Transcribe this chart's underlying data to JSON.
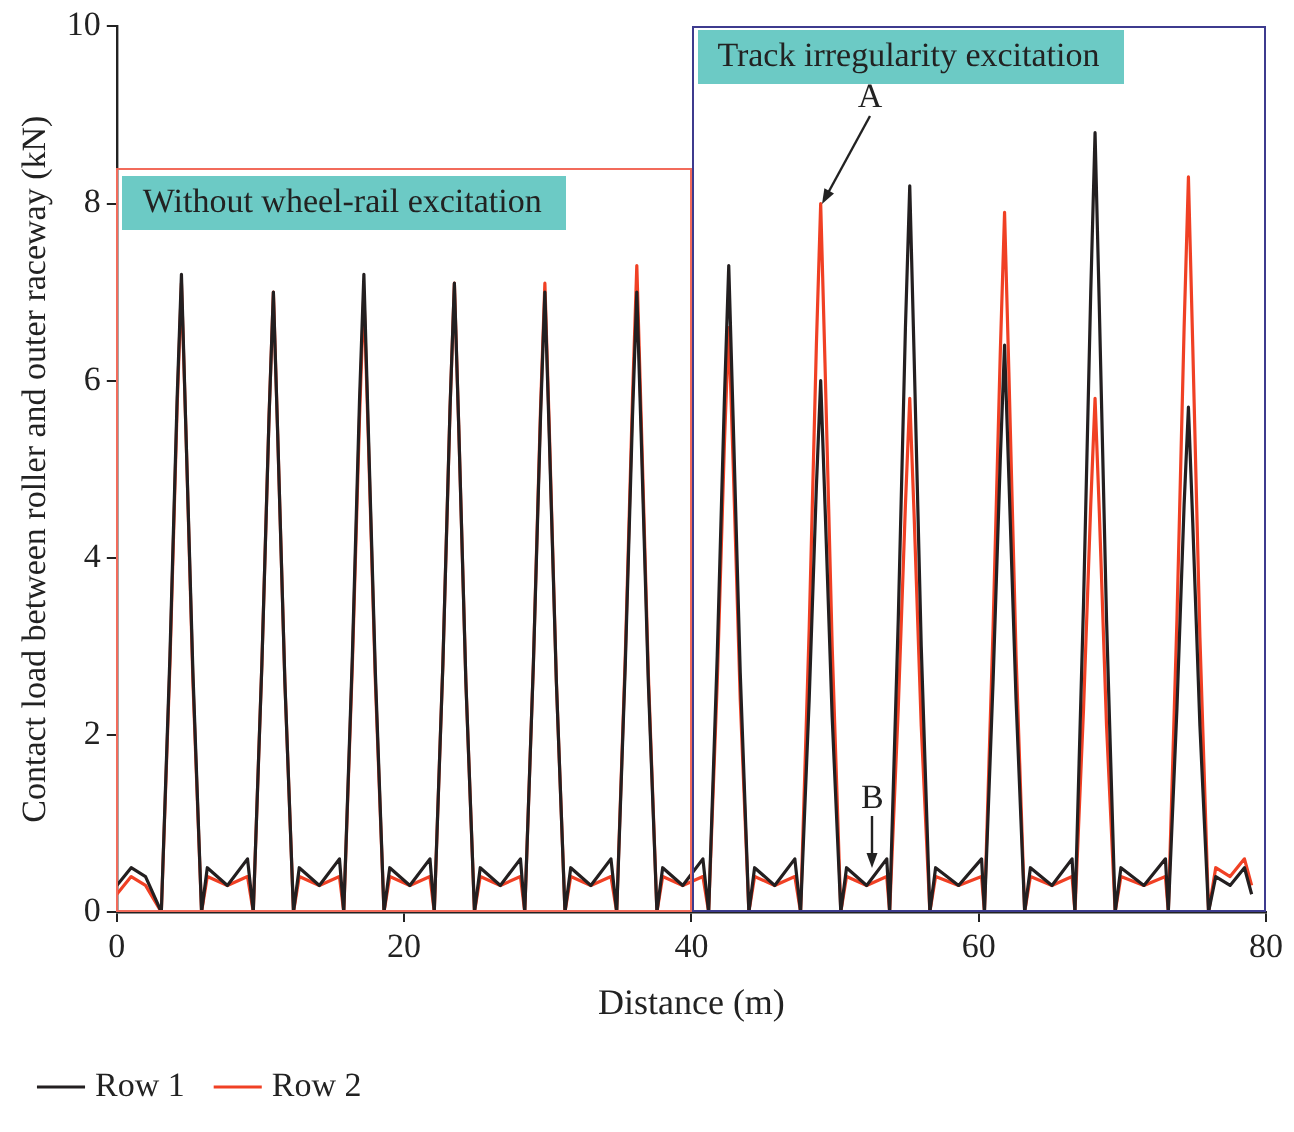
{
  "chart_data": {
    "type": "line",
    "xlabel": "Distance (m)",
    "ylabel": "Contact load between roller and outer raceway (kN)",
    "x": [
      0,
      1,
      2,
      3.1,
      3.7,
      4.2,
      4.5,
      4.8,
      5.3,
      5.9,
      6.3,
      7.7,
      9.1,
      9.5,
      10.1,
      10.6,
      10.9,
      11.2,
      11.7,
      12.3,
      12.7,
      14.1,
      15.5,
      15.8,
      16.4,
      16.9,
      17.2,
      17.5,
      18.0,
      18.6,
      19.0,
      20.4,
      21.8,
      22.1,
      22.7,
      23.2,
      23.5,
      23.8,
      24.3,
      24.9,
      25.3,
      26.7,
      28.1,
      28.4,
      29.0,
      29.5,
      29.8,
      30.1,
      30.6,
      31.2,
      31.6,
      33.0,
      34.4,
      34.8,
      35.4,
      35.9,
      36.2,
      36.5,
      37.0,
      37.6,
      38.0,
      39.4,
      40.8,
      41.2,
      41.8,
      42.3,
      42.6,
      42.9,
      43.4,
      44.0,
      44.4,
      45.8,
      47.2,
      47.6,
      48.2,
      48.7,
      49.0,
      49.3,
      49.8,
      50.4,
      50.8,
      52.2,
      53.6,
      53.8,
      54.4,
      54.9,
      55.2,
      55.5,
      56.0,
      56.6,
      57.0,
      58.6,
      60.2,
      60.4,
      61.0,
      61.5,
      61.8,
      62.1,
      62.6,
      63.2,
      63.6,
      65.1,
      66.5,
      66.7,
      67.3,
      67.8,
      68.1,
      68.4,
      68.9,
      69.5,
      69.9,
      71.5,
      73.0,
      73.2,
      73.8,
      74.3,
      74.6,
      74.9,
      75.4,
      76.0,
      76.5,
      77.5,
      78.5,
      79.0
    ],
    "series": [
      {
        "name": "Row 1",
        "color": "#231f20",
        "values": [
          0.3,
          0.5,
          0.4,
          0,
          2.9,
          5.8,
          7.2,
          5.5,
          2.7,
          0,
          0.5,
          0.3,
          0.6,
          0,
          2.8,
          5.6,
          7.0,
          5.4,
          2.6,
          0,
          0.5,
          0.3,
          0.6,
          0,
          2.9,
          5.8,
          7.2,
          5.5,
          2.7,
          0,
          0.5,
          0.3,
          0.6,
          0,
          2.8,
          5.7,
          7.1,
          5.5,
          2.6,
          0,
          0.5,
          0.3,
          0.6,
          0,
          2.8,
          5.6,
          7.0,
          5.4,
          2.6,
          0,
          0.5,
          0.3,
          0.6,
          0,
          2.8,
          5.6,
          7.0,
          5.4,
          2.6,
          0,
          0.5,
          0.3,
          0.6,
          0,
          2.9,
          5.8,
          7.3,
          5.6,
          2.7,
          0,
          0.5,
          0.3,
          0.6,
          0,
          2.4,
          4.8,
          6.0,
          4.6,
          2.2,
          0,
          0.5,
          0.3,
          0.6,
          0,
          3.3,
          6.6,
          8.2,
          6.3,
          3.0,
          0,
          0.5,
          0.3,
          0.6,
          0,
          2.6,
          5.1,
          6.4,
          4.9,
          2.4,
          0,
          0.5,
          0.3,
          0.6,
          0,
          3.5,
          7.0,
          8.8,
          6.8,
          3.3,
          0,
          0.5,
          0.3,
          0.6,
          0,
          2.3,
          4.6,
          5.7,
          4.4,
          2.1,
          0,
          0.4,
          0.3,
          0.5,
          0.2
        ]
      },
      {
        "name": "Row 2",
        "color": "#f04024",
        "values": [
          0.2,
          0.4,
          0.3,
          0,
          2.8,
          5.7,
          7.1,
          5.5,
          2.6,
          0,
          0.4,
          0.3,
          0.4,
          0,
          2.8,
          5.6,
          7.0,
          5.4,
          2.6,
          0,
          0.4,
          0.3,
          0.4,
          0,
          2.8,
          5.6,
          7.0,
          5.4,
          2.6,
          0,
          0.4,
          0.3,
          0.4,
          0,
          2.8,
          5.7,
          7.1,
          5.5,
          2.6,
          0,
          0.4,
          0.3,
          0.4,
          0,
          2.8,
          5.7,
          7.1,
          5.5,
          2.6,
          0,
          0.4,
          0.3,
          0.4,
          0,
          2.9,
          5.8,
          7.3,
          5.6,
          2.7,
          0,
          0.4,
          0.3,
          0.4,
          0,
          2.6,
          5.3,
          6.6,
          5.1,
          2.4,
          0,
          0.4,
          0.3,
          0.4,
          0,
          3.2,
          6.4,
          8.0,
          6.2,
          3.0,
          0,
          0.4,
          0.3,
          0.4,
          0,
          2.3,
          4.6,
          5.8,
          4.5,
          2.1,
          0,
          0.4,
          0.3,
          0.4,
          0,
          3.2,
          6.3,
          7.9,
          6.1,
          2.9,
          0,
          0.4,
          0.3,
          0.4,
          0,
          2.3,
          4.6,
          5.8,
          4.5,
          2.1,
          0,
          0.4,
          0.3,
          0.4,
          0,
          3.3,
          6.6,
          8.3,
          6.4,
          3.1,
          0,
          0.5,
          0.4,
          0.6,
          0.3
        ]
      }
    ],
    "xlim": [
      0,
      80
    ],
    "xticks": [
      0,
      20,
      40,
      60,
      80
    ],
    "ylim": [
      0,
      10
    ],
    "yticks": [
      0,
      2,
      4,
      6,
      8,
      10
    ],
    "annotations": [
      "Without wheel-rail excitation",
      "Track irregularity excitation",
      {
        "text": "A",
        "x": 49.1,
        "y": 8.0
      },
      {
        "text": "B",
        "x": 52.6,
        "y": 0.5
      }
    ],
    "grid": false,
    "legend": "bottom",
    "marker": "none",
    "line_style": "solid"
  }
}
